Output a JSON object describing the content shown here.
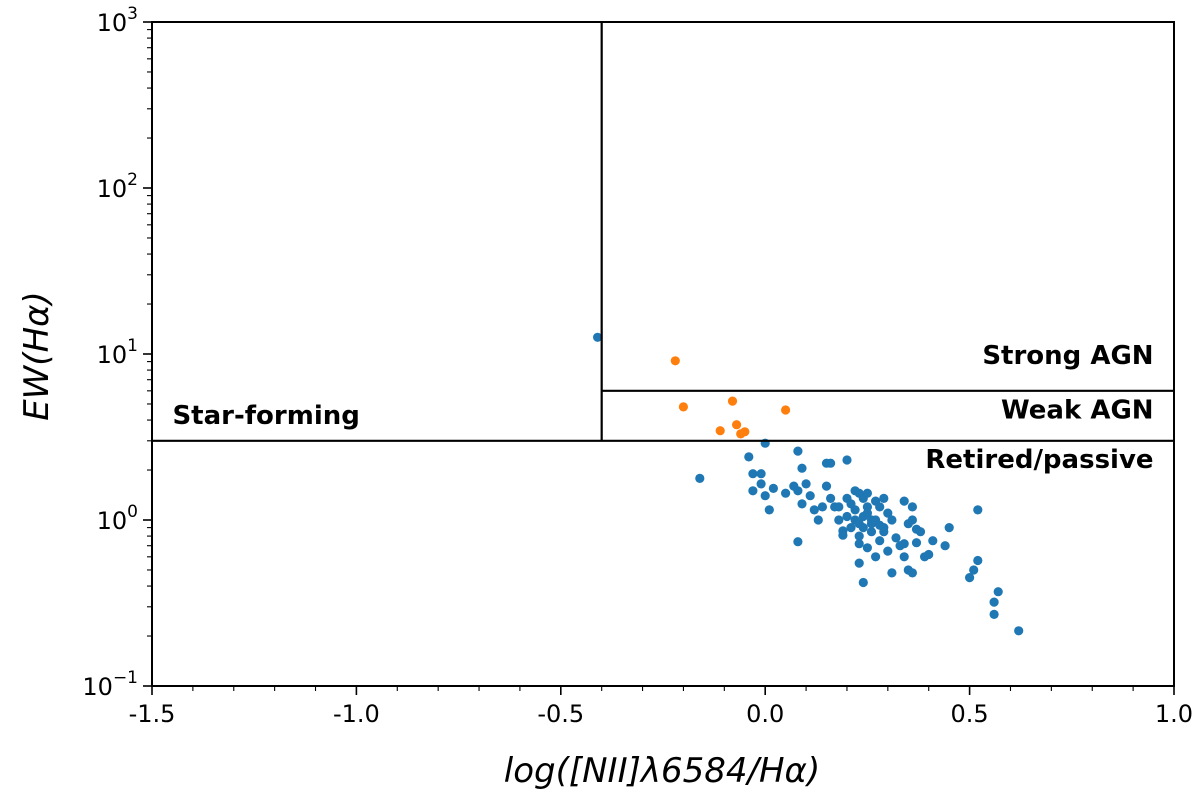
{
  "chart_data": {
    "type": "scatter",
    "title": "",
    "xlabel": "log([NII]λ6584/Hα)",
    "ylabel": "EW(Hα)",
    "xlim": [
      -1.5,
      1.0
    ],
    "ylim": [
      0.1,
      1000
    ],
    "yscale": "log",
    "grid": false,
    "x_ticks": [
      -1.5,
      -1.0,
      -0.5,
      0.0,
      0.5,
      1.0
    ],
    "x_tick_labels": [
      "-1.5",
      "-1.0",
      "-0.5",
      "0.0",
      "0.5",
      "1.0"
    ],
    "y_ticks": [
      {
        "value": 0.1,
        "base": "10",
        "exp": "−1"
      },
      {
        "value": 1,
        "base": "10",
        "exp": "0"
      },
      {
        "value": 10,
        "base": "10",
        "exp": "1"
      },
      {
        "value": 100,
        "base": "10",
        "exp": "2"
      },
      {
        "value": 1000,
        "base": "10",
        "exp": "3"
      }
    ],
    "colors": {
      "series_a": "#1f77b4",
      "series_b": "#ff7f0e",
      "lines": "#000000"
    },
    "boundaries": [
      {
        "name": "vertical-divider",
        "x": [
          -0.4,
          -0.4
        ],
        "y": [
          3,
          1000
        ]
      },
      {
        "name": "horizontal-3",
        "x": [
          -1.5,
          1.0
        ],
        "y": [
          3,
          3
        ]
      },
      {
        "name": "horizontal-6",
        "x": [
          -0.4,
          1.0
        ],
        "y": [
          6,
          6
        ]
      }
    ],
    "regions": [
      {
        "name": "star-forming",
        "label": "Star-forming",
        "x": -1.45,
        "y": 3.8,
        "anchor": "start"
      },
      {
        "name": "strong-agn",
        "label": "Strong AGN",
        "x": 0.95,
        "y": 8.7,
        "anchor": "end"
      },
      {
        "name": "weak-agn",
        "label": "Weak AGN",
        "x": 0.95,
        "y": 4.1,
        "anchor": "end"
      },
      {
        "name": "retired-passive",
        "label": "Retired/passive",
        "x": 0.95,
        "y": 2.05,
        "anchor": "end"
      }
    ],
    "series": [
      {
        "name": "blue",
        "color": "#1f77b4",
        "points": [
          [
            -0.41,
            12.6
          ],
          [
            -0.16,
            1.78
          ],
          [
            -0.04,
            2.4
          ],
          [
            -0.03,
            1.5
          ],
          [
            -0.03,
            1.9
          ],
          [
            -0.01,
            1.9
          ],
          [
            -0.01,
            1.65
          ],
          [
            0.0,
            2.9
          ],
          [
            0.0,
            1.4
          ],
          [
            0.01,
            1.15
          ],
          [
            0.02,
            1.55
          ],
          [
            0.05,
            1.45
          ],
          [
            0.07,
            1.6
          ],
          [
            0.08,
            1.5
          ],
          [
            0.08,
            0.74
          ],
          [
            0.08,
            2.6
          ],
          [
            0.09,
            2.05
          ],
          [
            0.09,
            1.25
          ],
          [
            0.1,
            1.65
          ],
          [
            0.11,
            1.4
          ],
          [
            0.12,
            1.15
          ],
          [
            0.13,
            1.0
          ],
          [
            0.14,
            1.2
          ],
          [
            0.15,
            1.6
          ],
          [
            0.15,
            2.2
          ],
          [
            0.16,
            2.2
          ],
          [
            0.16,
            1.35
          ],
          [
            0.17,
            1.2
          ],
          [
            0.18,
            1.2
          ],
          [
            0.18,
            1.0
          ],
          [
            0.19,
            0.86
          ],
          [
            0.19,
            0.81
          ],
          [
            0.2,
            2.3
          ],
          [
            0.2,
            1.05
          ],
          [
            0.2,
            1.35
          ],
          [
            0.21,
            1.25
          ],
          [
            0.21,
            0.9
          ],
          [
            0.22,
            1.5
          ],
          [
            0.22,
            1.15
          ],
          [
            0.22,
            1.0
          ],
          [
            0.23,
            0.95
          ],
          [
            0.23,
            0.8
          ],
          [
            0.23,
            0.72
          ],
          [
            0.23,
            1.45
          ],
          [
            0.23,
            0.55
          ],
          [
            0.24,
            1.35
          ],
          [
            0.24,
            1.05
          ],
          [
            0.24,
            0.9
          ],
          [
            0.24,
            0.42
          ],
          [
            0.25,
            1.2
          ],
          [
            0.25,
            1.45
          ],
          [
            0.25,
            1.1
          ],
          [
            0.25,
            0.68
          ],
          [
            0.26,
            1.0
          ],
          [
            0.26,
            0.85
          ],
          [
            0.26,
            0.95
          ],
          [
            0.27,
            1.3
          ],
          [
            0.27,
            1.0
          ],
          [
            0.27,
            0.6
          ],
          [
            0.28,
            1.2
          ],
          [
            0.28,
            0.75
          ],
          [
            0.28,
            0.93
          ],
          [
            0.29,
            1.35
          ],
          [
            0.29,
            0.9
          ],
          [
            0.29,
            0.85
          ],
          [
            0.3,
            1.1
          ],
          [
            0.3,
            0.65
          ],
          [
            0.31,
            1.0
          ],
          [
            0.31,
            0.48
          ],
          [
            0.32,
            0.78
          ],
          [
            0.33,
            0.7
          ],
          [
            0.34,
            1.3
          ],
          [
            0.34,
            0.72
          ],
          [
            0.34,
            0.6
          ],
          [
            0.35,
            0.95
          ],
          [
            0.35,
            0.5
          ],
          [
            0.36,
            1.0
          ],
          [
            0.36,
            1.2
          ],
          [
            0.36,
            0.48
          ],
          [
            0.37,
            0.88
          ],
          [
            0.37,
            0.73
          ],
          [
            0.38,
            0.85
          ],
          [
            0.39,
            0.6
          ],
          [
            0.4,
            0.62
          ],
          [
            0.41,
            0.75
          ],
          [
            0.44,
            0.7
          ],
          [
            0.45,
            0.9
          ],
          [
            0.5,
            0.45
          ],
          [
            0.51,
            0.5
          ],
          [
            0.52,
            0.57
          ],
          [
            0.52,
            1.15
          ],
          [
            0.56,
            0.32
          ],
          [
            0.56,
            0.27
          ],
          [
            0.57,
            0.37
          ],
          [
            0.62,
            0.215
          ]
        ]
      },
      {
        "name": "orange",
        "color": "#ff7f0e",
        "points": [
          [
            -0.22,
            9.1
          ],
          [
            -0.2,
            4.8
          ],
          [
            -0.11,
            3.45
          ],
          [
            -0.08,
            5.2
          ],
          [
            -0.07,
            3.75
          ],
          [
            -0.06,
            3.3
          ],
          [
            -0.05,
            3.4
          ],
          [
            0.05,
            4.6
          ]
        ]
      }
    ]
  }
}
